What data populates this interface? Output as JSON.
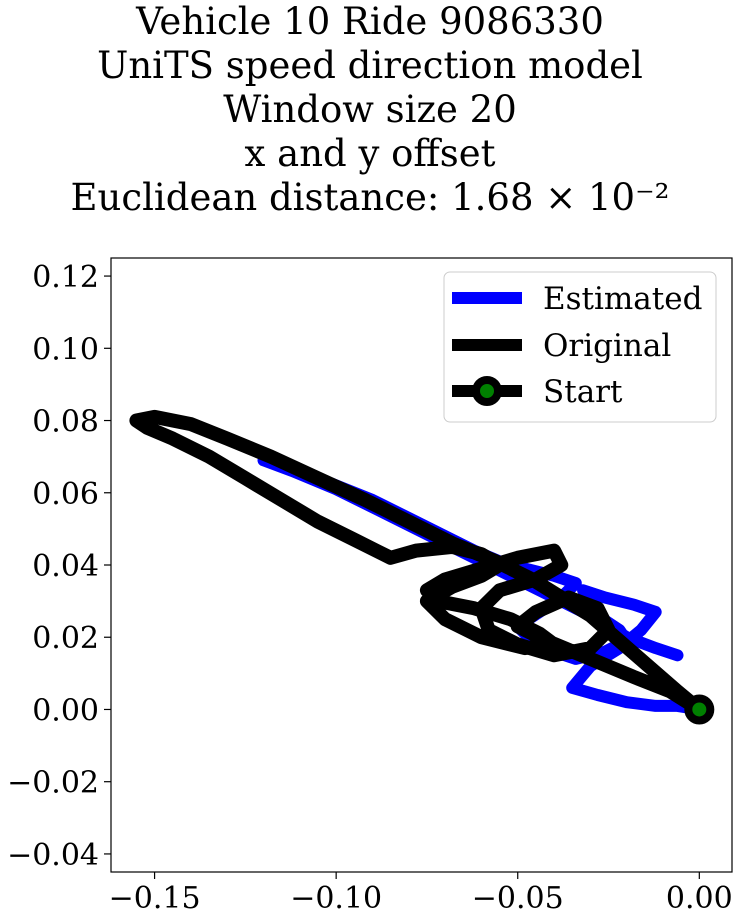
{
  "chart_data": {
    "type": "line",
    "title_lines": [
      "Vehicle 10 Ride 9086330",
      "UniTS speed direction model",
      "Window size 20",
      "x and y offset",
      "Euclidean distance: 1.68 × 10⁻²"
    ],
    "xlabel": "",
    "ylabel": "",
    "xlim": [
      -0.162,
      0.009
    ],
    "ylim": [
      -0.045,
      0.125
    ],
    "xticks": [
      -0.15,
      -0.1,
      -0.05,
      0.0
    ],
    "yticks": [
      -0.04,
      -0.02,
      0.0,
      0.02,
      0.04,
      0.06,
      0.08,
      0.1,
      0.12
    ],
    "xtick_labels": [
      "−0.15",
      "−0.10",
      "−0.05",
      "0.00"
    ],
    "ytick_labels": [
      "−0.04",
      "−0.02",
      "0.00",
      "0.02",
      "0.04",
      "0.06",
      "0.08",
      "0.10",
      "0.12"
    ],
    "grid": false,
    "legend_position": "top-right",
    "series": [
      {
        "name": "Estimated",
        "color": "#0000ff",
        "x": [
          0.0,
          -0.006,
          -0.012,
          -0.02,
          -0.028,
          -0.035,
          -0.03,
          -0.022,
          -0.016,
          -0.012,
          -0.018,
          -0.026,
          -0.032,
          -0.028,
          -0.022,
          -0.02,
          -0.026,
          -0.034,
          -0.04,
          -0.046,
          -0.05,
          -0.044,
          -0.038,
          -0.034,
          -0.04,
          -0.048,
          -0.055,
          -0.062,
          -0.07,
          -0.08,
          -0.09,
          -0.1,
          -0.11,
          -0.12,
          -0.112,
          -0.1,
          -0.088,
          -0.076,
          -0.066,
          -0.056,
          -0.046,
          -0.036,
          -0.028,
          -0.02,
          -0.012,
          -0.006
        ],
        "y": [
          0.0,
          0.001,
          0.001,
          0.002,
          0.004,
          0.006,
          0.012,
          0.017,
          0.022,
          0.027,
          0.029,
          0.031,
          0.033,
          0.026,
          0.022,
          0.019,
          0.016,
          0.014,
          0.016,
          0.019,
          0.023,
          0.027,
          0.031,
          0.035,
          0.037,
          0.039,
          0.041,
          0.044,
          0.048,
          0.053,
          0.058,
          0.062,
          0.066,
          0.069,
          0.066,
          0.061,
          0.055,
          0.049,
          0.044,
          0.039,
          0.034,
          0.029,
          0.025,
          0.02,
          0.017,
          0.015
        ]
      },
      {
        "name": "Original",
        "color": "#000000",
        "x": [
          0.0,
          -0.008,
          -0.018,
          -0.03,
          -0.042,
          -0.05,
          -0.045,
          -0.036,
          -0.028,
          -0.025,
          -0.03,
          -0.04,
          -0.05,
          -0.058,
          -0.06,
          -0.055,
          -0.045,
          -0.038,
          -0.04,
          -0.05,
          -0.06,
          -0.07,
          -0.075,
          -0.072,
          -0.062,
          -0.052,
          -0.044,
          -0.04,
          -0.048,
          -0.06,
          -0.07,
          -0.075,
          -0.068,
          -0.06,
          -0.055,
          -0.06,
          -0.068,
          -0.078,
          -0.085,
          -0.095,
          -0.105,
          -0.115,
          -0.125,
          -0.135,
          -0.145,
          -0.152,
          -0.155,
          -0.15,
          -0.14,
          -0.13,
          -0.118,
          -0.105,
          -0.092,
          -0.08,
          -0.068,
          -0.056,
          -0.046,
          -0.038,
          -0.03,
          -0.022,
          -0.014,
          -0.006,
          0.0
        ],
        "y": [
          0.0,
          0.005,
          0.009,
          0.014,
          0.019,
          0.023,
          0.027,
          0.031,
          0.028,
          0.022,
          0.017,
          0.015,
          0.018,
          0.022,
          0.028,
          0.033,
          0.036,
          0.04,
          0.044,
          0.042,
          0.039,
          0.036,
          0.033,
          0.03,
          0.028,
          0.025,
          0.021,
          0.018,
          0.017,
          0.02,
          0.025,
          0.03,
          0.034,
          0.037,
          0.04,
          0.043,
          0.045,
          0.044,
          0.042,
          0.047,
          0.052,
          0.058,
          0.064,
          0.07,
          0.075,
          0.078,
          0.08,
          0.081,
          0.079,
          0.075,
          0.07,
          0.064,
          0.058,
          0.052,
          0.046,
          0.041,
          0.036,
          0.031,
          0.026,
          0.019,
          0.012,
          0.005,
          0.0
        ]
      }
    ],
    "start_point": {
      "name": "Start",
      "x": 0.0,
      "y": 0.0,
      "marker_face": "#008000",
      "marker_edge": "#000000"
    }
  }
}
